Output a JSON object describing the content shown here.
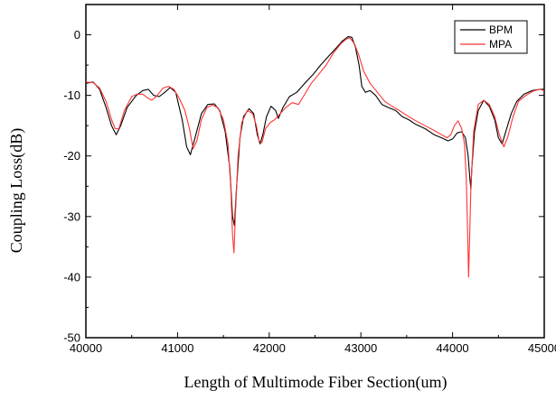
{
  "chart_data": {
    "type": "line",
    "title": "",
    "xlabel": "Length of Multimode Fiber Section(um)",
    "ylabel": "Coupling Loss(dB)",
    "xlim": [
      40000,
      45000
    ],
    "ylim": [
      -50,
      5
    ],
    "xticks": [
      40000,
      41000,
      42000,
      43000,
      44000,
      45000
    ],
    "xtick_labels": [
      "40000",
      "41000",
      "42000",
      "43000",
      "44000",
      "45000"
    ],
    "yticks": [
      0,
      -10,
      -20,
      -30,
      -40,
      -50
    ],
    "ytick_labels": [
      "0",
      "-10",
      "-20",
      "-30",
      "-40",
      "-50"
    ],
    "legend_position": "top-right",
    "grid": false,
    "series": [
      {
        "name": "BPM",
        "color": "#000000",
        "points": [
          [
            40000,
            -8
          ],
          [
            40080,
            -7.8
          ],
          [
            40150,
            -9
          ],
          [
            40220,
            -12
          ],
          [
            40280,
            -15
          ],
          [
            40330,
            -16.5
          ],
          [
            40380,
            -15
          ],
          [
            40450,
            -12
          ],
          [
            40550,
            -10
          ],
          [
            40620,
            -9.2
          ],
          [
            40680,
            -9
          ],
          [
            40740,
            -10
          ],
          [
            40800,
            -10.2
          ],
          [
            40860,
            -9.5
          ],
          [
            40920,
            -8.7
          ],
          [
            40980,
            -9.5
          ],
          [
            41050,
            -14
          ],
          [
            41100,
            -18.5
          ],
          [
            41140,
            -19.8
          ],
          [
            41190,
            -17
          ],
          [
            41260,
            -13
          ],
          [
            41330,
            -11.5
          ],
          [
            41400,
            -11.4
          ],
          [
            41460,
            -12.5
          ],
          [
            41520,
            -16
          ],
          [
            41570,
            -22
          ],
          [
            41600,
            -30
          ],
          [
            41620,
            -31.5
          ],
          [
            41640,
            -26
          ],
          [
            41680,
            -17
          ],
          [
            41720,
            -13.5
          ],
          [
            41780,
            -12.2
          ],
          [
            41830,
            -13
          ],
          [
            41870,
            -16.5
          ],
          [
            41900,
            -18
          ],
          [
            41930,
            -16.5
          ],
          [
            41970,
            -13.5
          ],
          [
            42020,
            -11.8
          ],
          [
            42070,
            -12.5
          ],
          [
            42100,
            -13.8
          ],
          [
            42150,
            -12
          ],
          [
            42220,
            -10.2
          ],
          [
            42300,
            -9.5
          ],
          [
            42400,
            -7.8
          ],
          [
            42480,
            -6.5
          ],
          [
            42560,
            -5
          ],
          [
            42650,
            -3.5
          ],
          [
            42730,
            -2.2
          ],
          [
            42800,
            -1
          ],
          [
            42860,
            -0.3
          ],
          [
            42900,
            -0.4
          ],
          [
            42940,
            -2
          ],
          [
            42980,
            -5
          ],
          [
            43010,
            -8.5
          ],
          [
            43050,
            -9.5
          ],
          [
            43100,
            -9.2
          ],
          [
            43160,
            -10
          ],
          [
            43230,
            -11.5
          ],
          [
            43300,
            -12
          ],
          [
            43380,
            -12.5
          ],
          [
            43450,
            -13.5
          ],
          [
            43520,
            -14
          ],
          [
            43600,
            -14.8
          ],
          [
            43700,
            -15.5
          ],
          [
            43800,
            -16.5
          ],
          [
            43880,
            -17
          ],
          [
            43950,
            -17.5
          ],
          [
            44000,
            -17.2
          ],
          [
            44050,
            -16.2
          ],
          [
            44100,
            -16
          ],
          [
            44140,
            -17
          ],
          [
            44170,
            -20
          ],
          [
            44190,
            -24
          ],
          [
            44200,
            -25.5
          ],
          [
            44210,
            -22
          ],
          [
            44240,
            -16
          ],
          [
            44280,
            -12.5
          ],
          [
            44340,
            -10.8
          ],
          [
            44400,
            -11.8
          ],
          [
            44460,
            -14
          ],
          [
            44500,
            -17
          ],
          [
            44540,
            -18
          ],
          [
            44580,
            -16
          ],
          [
            44640,
            -13
          ],
          [
            44700,
            -11
          ],
          [
            44780,
            -9.8
          ],
          [
            44870,
            -9.2
          ],
          [
            44950,
            -9
          ],
          [
            45000,
            -9
          ]
        ]
      },
      {
        "name": "MPA",
        "color": "#ff3333",
        "points": [
          [
            40000,
            -7.8
          ],
          [
            40080,
            -7.9
          ],
          [
            40150,
            -8.8
          ],
          [
            40220,
            -11
          ],
          [
            40280,
            -14
          ],
          [
            40320,
            -15.5
          ],
          [
            40360,
            -15.5
          ],
          [
            40420,
            -12.5
          ],
          [
            40500,
            -10.2
          ],
          [
            40560,
            -9.8
          ],
          [
            40620,
            -9.8
          ],
          [
            40680,
            -10.5
          ],
          [
            40720,
            -10.8
          ],
          [
            40780,
            -10
          ],
          [
            40840,
            -8.8
          ],
          [
            40900,
            -8.5
          ],
          [
            40960,
            -9
          ],
          [
            41020,
            -10.5
          ],
          [
            41080,
            -12.5
          ],
          [
            41130,
            -15.5
          ],
          [
            41170,
            -18.8
          ],
          [
            41210,
            -17.5
          ],
          [
            41260,
            -14
          ],
          [
            41320,
            -12
          ],
          [
            41380,
            -11.6
          ],
          [
            41440,
            -12
          ],
          [
            41500,
            -14
          ],
          [
            41550,
            -18
          ],
          [
            41580,
            -25
          ],
          [
            41600,
            -33
          ],
          [
            41615,
            -36
          ],
          [
            41630,
            -30
          ],
          [
            41660,
            -20
          ],
          [
            41700,
            -14.5
          ],
          [
            41760,
            -12.5
          ],
          [
            41820,
            -13
          ],
          [
            41860,
            -15
          ],
          [
            41890,
            -17.5
          ],
          [
            41920,
            -17.8
          ],
          [
            41960,
            -15.5
          ],
          [
            42010,
            -14.5
          ],
          [
            42060,
            -14
          ],
          [
            42120,
            -13
          ],
          [
            42180,
            -12
          ],
          [
            42250,
            -11.2
          ],
          [
            42320,
            -11.5
          ],
          [
            42380,
            -10
          ],
          [
            42460,
            -8
          ],
          [
            42540,
            -6.5
          ],
          [
            42620,
            -5
          ],
          [
            42700,
            -3
          ],
          [
            42780,
            -1.5
          ],
          [
            42840,
            -0.7
          ],
          [
            42880,
            -0.5
          ],
          [
            42930,
            -1.5
          ],
          [
            42980,
            -3.5
          ],
          [
            43030,
            -6
          ],
          [
            43100,
            -8
          ],
          [
            43180,
            -9.5
          ],
          [
            43260,
            -11
          ],
          [
            43340,
            -11.8
          ],
          [
            43420,
            -12.5
          ],
          [
            43500,
            -13.3
          ],
          [
            43600,
            -14.2
          ],
          [
            43700,
            -15
          ],
          [
            43800,
            -15.8
          ],
          [
            43880,
            -16.5
          ],
          [
            43940,
            -17
          ],
          [
            43980,
            -16.5
          ],
          [
            44020,
            -15
          ],
          [
            44060,
            -14.2
          ],
          [
            44100,
            -15.5
          ],
          [
            44130,
            -18
          ],
          [
            44150,
            -24
          ],
          [
            44165,
            -33
          ],
          [
            44175,
            -40
          ],
          [
            44185,
            -34
          ],
          [
            44200,
            -25
          ],
          [
            44230,
            -16
          ],
          [
            44280,
            -11.5
          ],
          [
            44340,
            -10.8
          ],
          [
            44400,
            -11.5
          ],
          [
            44460,
            -13.5
          ],
          [
            44510,
            -16.5
          ],
          [
            44560,
            -18.5
          ],
          [
            44600,
            -17
          ],
          [
            44660,
            -13.5
          ],
          [
            44720,
            -11
          ],
          [
            44800,
            -10
          ],
          [
            44880,
            -9.3
          ],
          [
            44950,
            -9
          ],
          [
            45000,
            -9.2
          ]
        ]
      }
    ]
  }
}
